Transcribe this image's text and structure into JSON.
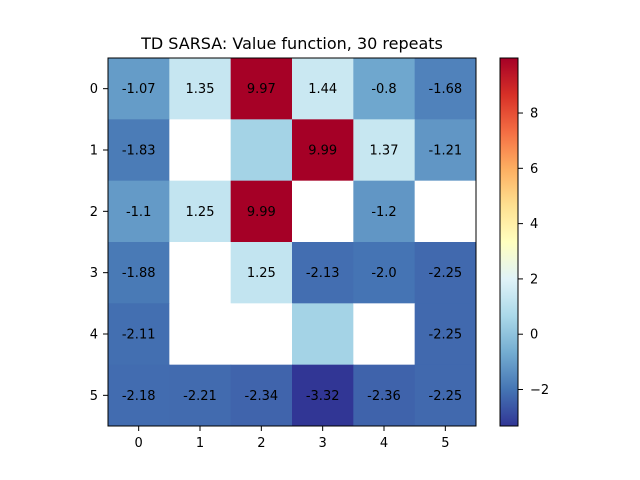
{
  "chart_data": {
    "type": "heatmap",
    "title": "TD SARSA: Value function, 30 repeats",
    "rows": [
      "0",
      "1",
      "2",
      "3",
      "4",
      "5"
    ],
    "cols": [
      "0",
      "1",
      "2",
      "3",
      "4",
      "5"
    ],
    "colormap": "RdYlBu_r",
    "vmin": -3.32,
    "vmax": 9.99,
    "colorbar_ticks": [
      "−2",
      "0",
      "2",
      "4",
      "6",
      "8"
    ],
    "colorbar_tick_values": [
      -2,
      0,
      2,
      4,
      6,
      8
    ],
    "white_color": "#ffffff",
    "cells": [
      [
        {
          "v": -1.07,
          "label": "-1.07"
        },
        {
          "v": 1.35,
          "label": "1.35"
        },
        {
          "v": 9.97,
          "label": "9.97"
        },
        {
          "v": 1.44,
          "label": "1.44"
        },
        {
          "v": -0.8,
          "label": "-0.8"
        },
        {
          "v": -1.68,
          "label": "-1.68"
        }
      ],
      [
        {
          "v": -1.83,
          "label": "-1.83"
        },
        null,
        {
          "v": 0.5,
          "label": ""
        },
        {
          "v": 9.99,
          "label": "9.99"
        },
        {
          "v": 1.37,
          "label": "1.37"
        },
        {
          "v": -1.21,
          "label": "-1.21"
        }
      ],
      [
        {
          "v": -1.1,
          "label": "-1.1"
        },
        {
          "v": 1.25,
          "label": "1.25"
        },
        {
          "v": 9.99,
          "label": "9.99"
        },
        null,
        {
          "v": -1.2,
          "label": "-1.2"
        },
        null
      ],
      [
        {
          "v": -1.88,
          "label": "-1.88"
        },
        null,
        {
          "v": 1.25,
          "label": "1.25"
        },
        {
          "v": -2.13,
          "label": "-2.13"
        },
        {
          "v": -2.0,
          "label": "-2.0"
        },
        {
          "v": -2.25,
          "label": "-2.25"
        }
      ],
      [
        {
          "v": -2.11,
          "label": "-2.11"
        },
        null,
        null,
        {
          "v": 0.5,
          "label": ""
        },
        null,
        {
          "v": -2.25,
          "label": "-2.25"
        }
      ],
      [
        {
          "v": -2.18,
          "label": "-2.18"
        },
        {
          "v": -2.21,
          "label": "-2.21"
        },
        {
          "v": -2.34,
          "label": "-2.34"
        },
        {
          "v": -3.32,
          "label": "-3.32"
        },
        {
          "v": -2.36,
          "label": "-2.36"
        },
        {
          "v": -2.25,
          "label": "-2.25"
        }
      ]
    ]
  }
}
